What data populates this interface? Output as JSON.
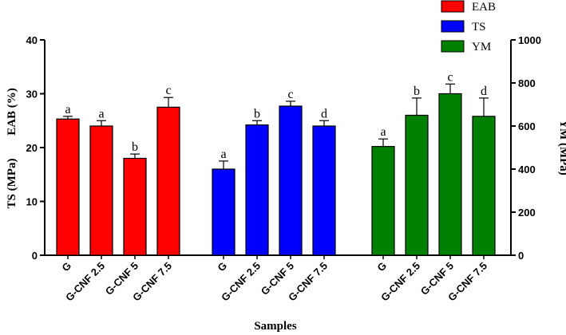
{
  "chart_data": {
    "type": "bar",
    "title": "",
    "xlabel": "Samples",
    "ylabel_left_1": "TS (MPa)",
    "ylabel_left_2": "EAB (%)",
    "ylabel_right": "YM (MPa)",
    "ylim_left": [
      0,
      40
    ],
    "yticks_left": [
      0,
      10,
      20,
      30,
      40
    ],
    "ylim_right": [
      0,
      1000
    ],
    "yticks_right": [
      0,
      200,
      400,
      600,
      800,
      1000
    ],
    "legend": [
      "EAB",
      "TS",
      "YM"
    ],
    "groups": [
      {
        "name": "EAB",
        "axis": "left",
        "color": "#ff0000",
        "categories": [
          "G",
          "G-CNF 2.5",
          "G-CNF 5",
          "G-CNF 7.5"
        ],
        "values": [
          25.3,
          24.0,
          18.0,
          27.5
        ],
        "errors": [
          0.5,
          1.0,
          0.8,
          1.8
        ],
        "letters": [
          "a",
          "a",
          "b",
          "c"
        ]
      },
      {
        "name": "TS",
        "axis": "left",
        "color": "#0000ff",
        "categories": [
          "G",
          "G-CNF 2.5",
          "G-CNF 5",
          "G-CNF 7.5"
        ],
        "values": [
          16.0,
          24.2,
          27.7,
          24.0
        ],
        "errors": [
          1.5,
          0.8,
          0.9,
          1.0
        ],
        "letters": [
          "a",
          "b",
          "c",
          "d"
        ]
      },
      {
        "name": "YM",
        "axis": "right",
        "color": "#008000",
        "categories": [
          "G",
          "G-CNF 2.5",
          "G-CNF 5",
          "G-CNF 7.5"
        ],
        "values": [
          505,
          650,
          750,
          645
        ],
        "errors": [
          35,
          80,
          45,
          85
        ],
        "letters": [
          "a",
          "b",
          "c",
          "d"
        ]
      }
    ]
  }
}
